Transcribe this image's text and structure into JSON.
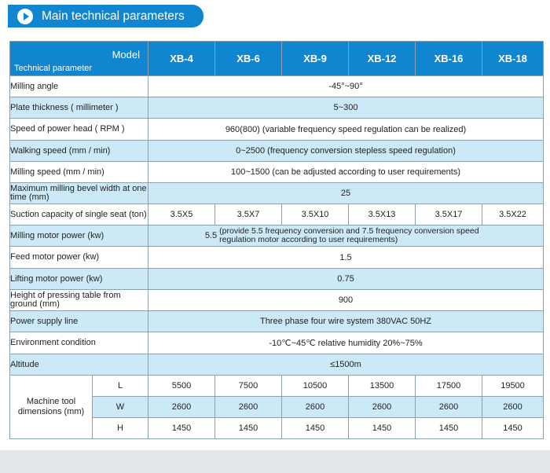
{
  "banner": {
    "title": "Main technical parameters",
    "icon": "play-arrow-icon"
  },
  "table": {
    "header": {
      "model_label": "Model",
      "param_label": "Technical parameter",
      "models": [
        "XB-4",
        "XB-6",
        "XB-9",
        "XB-12",
        "XB-16",
        "XB-18"
      ]
    },
    "rows": [
      {
        "label": "Milling angle",
        "value": "-45°~90°"
      },
      {
        "label": "Plate thickness ( millimeter )",
        "value": "5~300"
      },
      {
        "label": "Speed of power head ( RPM )",
        "value": "960(800) (variable frequency speed regulation can be realized)"
      },
      {
        "label": "Walking speed (mm / min)",
        "value": "0~2500 (frequency conversion stepless speed regulation)"
      },
      {
        "label": "Milling speed (mm / min)",
        "value": "100~1500 (can be adjusted according to user requirements)"
      },
      {
        "label": "Maximum milling bevel width at one time (mm)",
        "value": "25"
      },
      {
        "label": "Suction capacity of single seat (ton)",
        "values": [
          "3.5X5",
          "3.5X7",
          "3.5X10",
          "3.5X13",
          "3.5X17",
          "3.5X22"
        ]
      },
      {
        "label": "Milling motor power (kw)",
        "value_prefix": "5.5",
        "value": "(provide 5.5 frequency conversion and 7.5 frequency conversion speed regulation motor according to user requirements)"
      },
      {
        "label": "Feed motor power (kw)",
        "value": "1.5"
      },
      {
        "label": "Lifting motor power (kw)",
        "value": "0.75"
      },
      {
        "label": "Height of pressing table from ground (mm)",
        "value": "900"
      },
      {
        "label": "Power supply line",
        "value": "Three phase four wire system 380VAC   50HZ"
      },
      {
        "label": "Environment condition",
        "value": "-10℃~45℃   relative humidity 20%~75%"
      },
      {
        "label": "Altitude",
        "value": "≤1500m"
      }
    ],
    "dimensions": {
      "label": "Machine tool dimensions (mm)",
      "rows": [
        {
          "axis": "L",
          "values": [
            "5500",
            "7500",
            "10500",
            "13500",
            "17500",
            "19500"
          ]
        },
        {
          "axis": "W",
          "values": [
            "2600",
            "2600",
            "2600",
            "2600",
            "2600",
            "2600"
          ]
        },
        {
          "axis": "H",
          "values": [
            "1450",
            "1450",
            "1450",
            "1450",
            "1450",
            "1450"
          ]
        }
      ]
    }
  },
  "colors": {
    "accent": "#1186d0",
    "row_alt": "#cce9f8",
    "footer": "#e4e7ea"
  }
}
